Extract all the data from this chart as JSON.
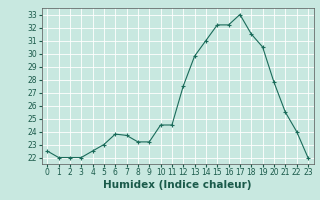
{
  "x": [
    0,
    1,
    2,
    3,
    4,
    5,
    6,
    7,
    8,
    9,
    10,
    11,
    12,
    13,
    14,
    15,
    16,
    17,
    18,
    19,
    20,
    21,
    22,
    23
  ],
  "y": [
    22.5,
    22.0,
    22.0,
    22.0,
    22.5,
    23.0,
    23.8,
    23.7,
    23.2,
    23.2,
    24.5,
    24.5,
    27.5,
    29.8,
    31.0,
    32.2,
    32.2,
    33.0,
    31.5,
    30.5,
    27.8,
    25.5,
    24.0,
    22.0
  ],
  "line_color": "#1a6b5a",
  "marker": "+",
  "marker_size": 3,
  "marker_lw": 0.8,
  "bg_color": "#c8e8e0",
  "grid_color": "#ffffff",
  "xlabel": "Humidex (Indice chaleur)",
  "ylim": [
    21.5,
    33.5
  ],
  "xlim": [
    -0.5,
    23.5
  ],
  "yticks": [
    22,
    23,
    24,
    25,
    26,
    27,
    28,
    29,
    30,
    31,
    32,
    33
  ],
  "xticks": [
    0,
    1,
    2,
    3,
    4,
    5,
    6,
    7,
    8,
    9,
    10,
    11,
    12,
    13,
    14,
    15,
    16,
    17,
    18,
    19,
    20,
    21,
    22,
    23
  ],
  "tick_label_fontsize": 5.5,
  "xlabel_fontsize": 7.5,
  "line_width": 0.8
}
